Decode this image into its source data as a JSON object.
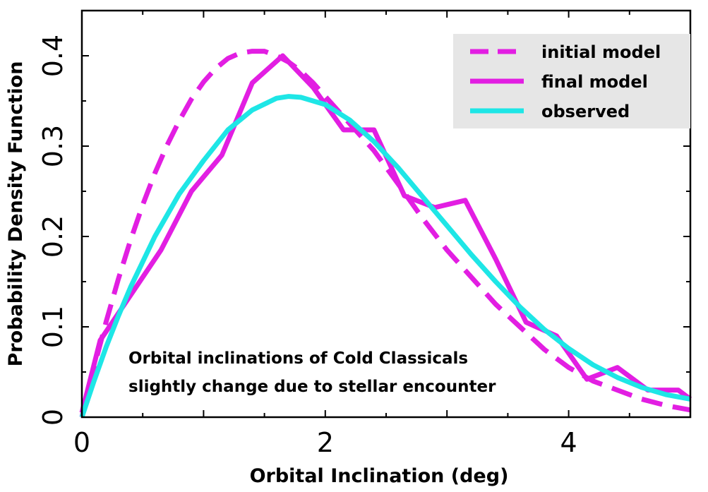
{
  "chart_data": {
    "type": "line",
    "title": "",
    "xlabel": "Orbital Inclination (deg)",
    "ylabel": "Probability Density Function",
    "xlim": [
      0,
      5
    ],
    "ylim": [
      0,
      0.45
    ],
    "x_ticks": [
      "0",
      "2",
      "4"
    ],
    "y_ticks": [
      "0",
      "0.1",
      "0.2",
      "0.3",
      "0.4"
    ],
    "annotation": [
      "Orbital inclinations of Cold Classicals",
      "slightly change due to stellar encounter"
    ],
    "legend_position": "top-right",
    "series": [
      {
        "name": "initial model",
        "style": "dashed",
        "color": "#e21ee2",
        "x": [
          0,
          0.1,
          0.2,
          0.3,
          0.4,
          0.5,
          0.6,
          0.7,
          0.8,
          0.9,
          1.0,
          1.1,
          1.2,
          1.3,
          1.4,
          1.5,
          1.6,
          1.7,
          1.8,
          1.9,
          2.0,
          2.2,
          2.4,
          2.6,
          2.8,
          3.0,
          3.2,
          3.4,
          3.6,
          3.8,
          4.0,
          4.2,
          4.4,
          4.6,
          4.8,
          5.0
        ],
        "values": [
          0.0,
          0.055,
          0.106,
          0.153,
          0.196,
          0.235,
          0.27,
          0.301,
          0.328,
          0.352,
          0.371,
          0.386,
          0.397,
          0.403,
          0.405,
          0.405,
          0.4,
          0.393,
          0.383,
          0.37,
          0.355,
          0.325,
          0.295,
          0.258,
          0.22,
          0.185,
          0.155,
          0.125,
          0.1,
          0.075,
          0.055,
          0.04,
          0.03,
          0.02,
          0.013,
          0.008
        ]
      },
      {
        "name": "final model",
        "style": "solid",
        "color": "#e21ee2",
        "x": [
          0,
          0.15,
          0.4,
          0.65,
          0.9,
          1.15,
          1.4,
          1.65,
          1.9,
          2.15,
          2.4,
          2.65,
          2.9,
          3.15,
          3.4,
          3.65,
          3.9,
          4.15,
          4.4,
          4.65,
          4.9,
          5.0
        ],
        "values": [
          0.005,
          0.085,
          0.135,
          0.185,
          0.25,
          0.29,
          0.37,
          0.4,
          0.365,
          0.318,
          0.318,
          0.245,
          0.232,
          0.24,
          0.175,
          0.105,
          0.09,
          0.042,
          0.055,
          0.03,
          0.03,
          0.02
        ]
      },
      {
        "name": "observed",
        "style": "solid",
        "color": "#1ee6e6",
        "x": [
          0,
          0.1,
          0.2,
          0.3,
          0.4,
          0.6,
          0.8,
          1.0,
          1.2,
          1.4,
          1.6,
          1.7,
          1.8,
          2.0,
          2.2,
          2.4,
          2.6,
          2.8,
          3.0,
          3.2,
          3.4,
          3.6,
          3.8,
          4.0,
          4.2,
          4.4,
          4.6,
          4.8,
          5.0
        ],
        "values": [
          0.0,
          0.04,
          0.078,
          0.112,
          0.144,
          0.2,
          0.247,
          0.284,
          0.318,
          0.34,
          0.353,
          0.355,
          0.354,
          0.346,
          0.329,
          0.305,
          0.276,
          0.244,
          0.212,
          0.18,
          0.15,
          0.122,
          0.097,
          0.076,
          0.058,
          0.044,
          0.033,
          0.025,
          0.02
        ]
      }
    ]
  }
}
